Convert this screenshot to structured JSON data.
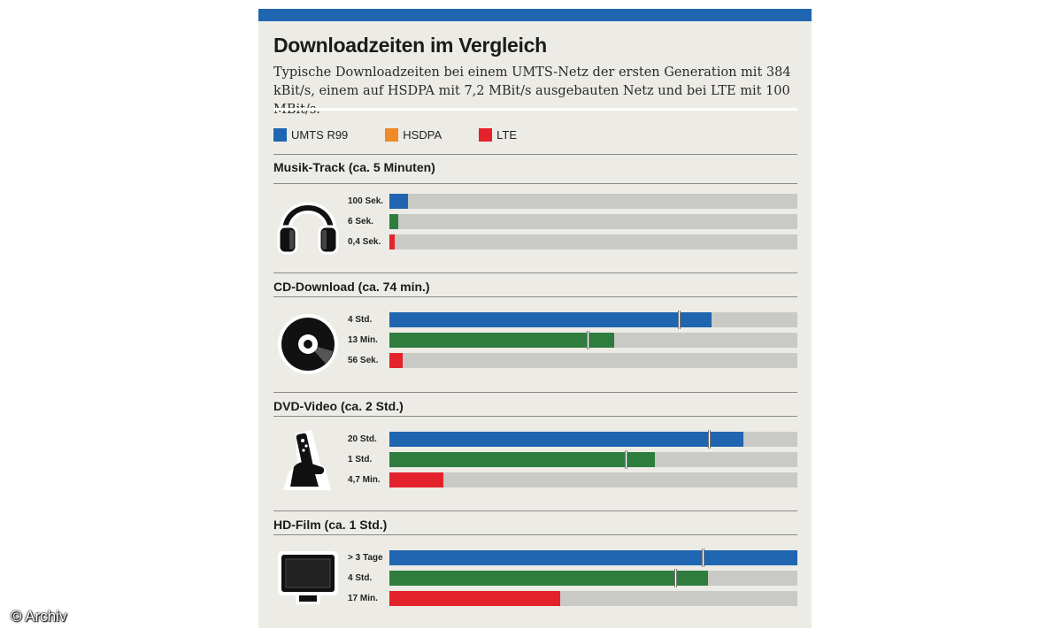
{
  "header": {
    "title": "Downloadzeiten im Vergleich",
    "subtitle": "Typische Downloadzeiten bei einem UMTS-Netz der ersten Generation mit 384 kBit/s, einem auf HSDPA mit 7,2 MBit/s ausgebauten Netz und bei LTE mit 100 MBit/s."
  },
  "credit": "© Archiv",
  "colors": {
    "umts": "#1f65b0",
    "hsdpa": "#2e7d3e",
    "lte": "#e3222b",
    "hsdpa_legend": "#ef8a26",
    "track": "#c9c9c6"
  },
  "chart_data": {
    "type": "bar",
    "legend": [
      {
        "label": "UMTS R99",
        "color": "#1f65b0"
      },
      {
        "label": "HSDPA",
        "color": "#ef8a26"
      },
      {
        "label": "LTE",
        "color": "#e3222b"
      }
    ],
    "sections": [
      {
        "title": "Musik-Track (ca. 5 Minuten)",
        "icon": "headphones-icon",
        "bars": [
          {
            "label": "100 Sek.",
            "fraction": 0.045,
            "color": "#1f65b0",
            "broken": false
          },
          {
            "label": "6 Sek.",
            "fraction": 0.022,
            "color": "#2e7d3e",
            "broken": false
          },
          {
            "label": "0,4 Sek.",
            "fraction": 0.013,
            "color": "#e3222b",
            "broken": false
          }
        ]
      },
      {
        "title": "CD-Download (ca. 74 min.)",
        "icon": "cd-icon",
        "bars": [
          {
            "label": "4 Std.",
            "fraction": 0.79,
            "color": "#1f65b0",
            "broken": true
          },
          {
            "label": "13 Min.",
            "fraction": 0.55,
            "color": "#2e7d3e",
            "broken": true
          },
          {
            "label": "56 Sek.",
            "fraction": 0.033,
            "color": "#e3222b",
            "broken": false
          }
        ]
      },
      {
        "title": "DVD-Video (ca. 2 Std.)",
        "icon": "remote-control-icon",
        "bars": [
          {
            "label": "20 Std.",
            "fraction": 0.867,
            "color": "#1f65b0",
            "broken": true
          },
          {
            "label": "1 Std.",
            "fraction": 0.65,
            "color": "#2e7d3e",
            "broken": true
          },
          {
            "label": "4,7 Min.",
            "fraction": 0.132,
            "color": "#e3222b",
            "broken": false
          }
        ]
      },
      {
        "title": "HD-Film (ca. 1 Std.)",
        "icon": "tv-icon",
        "bars": [
          {
            "label": "> 3 Tage",
            "fraction": 1.0,
            "color": "#1f65b0",
            "broken": true
          },
          {
            "label": "4 Std.",
            "fraction": 0.78,
            "color": "#2e7d3e",
            "broken": true
          },
          {
            "label": "17 Min.",
            "fraction": 0.418,
            "color": "#e3222b",
            "broken": false
          }
        ]
      }
    ]
  }
}
